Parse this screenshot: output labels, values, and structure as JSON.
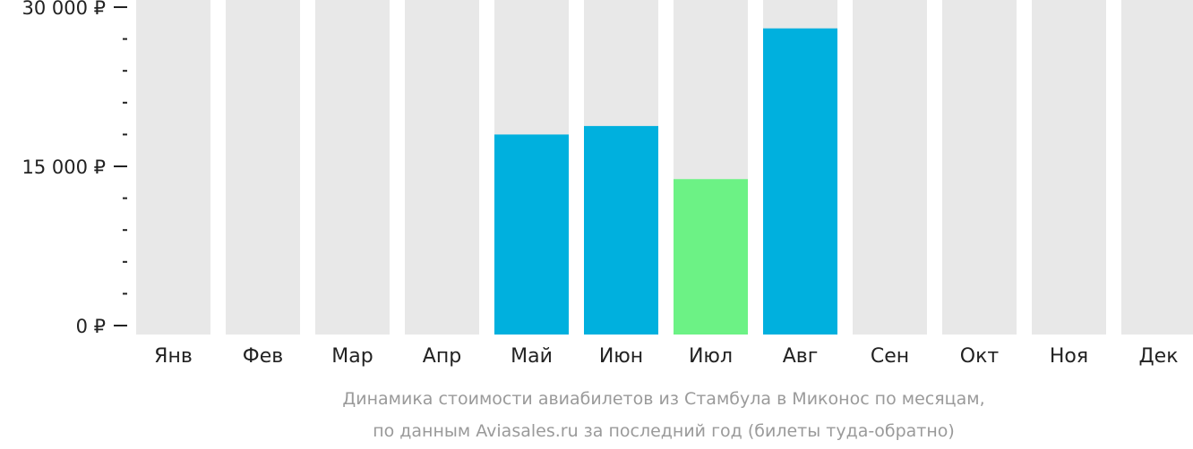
{
  "chart_data": {
    "type": "bar",
    "categories": [
      "Янв",
      "Фев",
      "Мар",
      "Апр",
      "Май",
      "Июн",
      "Июл",
      "Авг",
      "Сен",
      "Окт",
      "Ноя",
      "Дек"
    ],
    "values": [
      null,
      null,
      null,
      null,
      18000,
      18800,
      13800,
      28000,
      null,
      null,
      null,
      null
    ],
    "highlight_color": "#6cf285",
    "bar_color": "#00b0de",
    "empty_color": "#e8e8e8",
    "highlight_category": "Июл",
    "ylim": [
      0,
      30000
    ],
    "yticks": [
      {
        "value": 0,
        "label": "0 ₽"
      },
      {
        "value": 15000,
        "label": "15 000 ₽"
      },
      {
        "value": 30000,
        "label": "30 000 ₽"
      }
    ],
    "minor_ticks_per_interval": 4,
    "grid": false,
    "caption_lines": [
      "Динамика стоимости авиабилетов из Стамбула в Миконос по месяцам,",
      "по данным Aviasales.ru за последний год (билеты туда-обратно)"
    ]
  }
}
